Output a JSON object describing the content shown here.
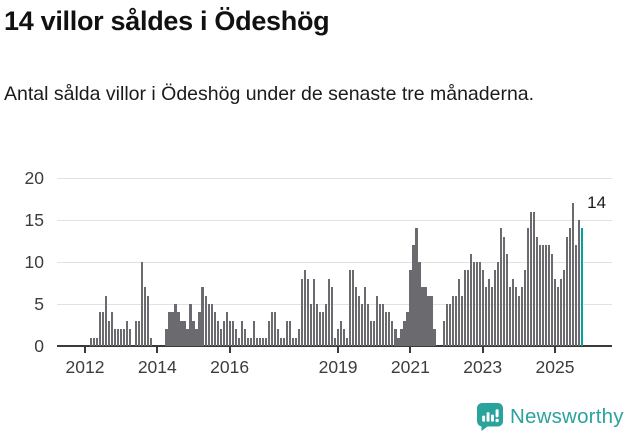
{
  "header": {
    "title": "14 villor såldes i Ödeshög",
    "subtitle": "Antal sålda villor i Ödeshög under de senaste tre månaderna."
  },
  "chart_data": {
    "type": "bar",
    "title": "14 villor såldes i Ödeshög",
    "xlabel": "",
    "ylabel": "",
    "frequency": "monthly",
    "x_start": "2012-01",
    "values": [
      0,
      0,
      1,
      1,
      1,
      4,
      4,
      6,
      3,
      4,
      2,
      2,
      2,
      2,
      3,
      2,
      0,
      3,
      3,
      10,
      7,
      6,
      1,
      0,
      0,
      0,
      0,
      2,
      4,
      4,
      5,
      4,
      3,
      3,
      2,
      5,
      3,
      2,
      4,
      7,
      6,
      5,
      5,
      4,
      3,
      2,
      3,
      4,
      3,
      3,
      2,
      1,
      3,
      2,
      1,
      1,
      3,
      1,
      1,
      1,
      1,
      3,
      4,
      4,
      2,
      1,
      1,
      3,
      3,
      1,
      1,
      2,
      8,
      9,
      8,
      5,
      8,
      5,
      4,
      4,
      5,
      8,
      7,
      1,
      2,
      3,
      2,
      1,
      9,
      9,
      7,
      6,
      5,
      7,
      5,
      3,
      3,
      6,
      5,
      5,
      4,
      4,
      3,
      2,
      1,
      2,
      3,
      4,
      9,
      12,
      14,
      10,
      7,
      7,
      6,
      6,
      2,
      0,
      0,
      3,
      5,
      5,
      6,
      6,
      8,
      6,
      9,
      9,
      11,
      10,
      10,
      10,
      9,
      7,
      8,
      7,
      9,
      10,
      14,
      13,
      11,
      7,
      8,
      7,
      6,
      7,
      9,
      14,
      16,
      16,
      13,
      12,
      12,
      12,
      12,
      11,
      8,
      7,
      8,
      9,
      13,
      14,
      17,
      12,
      15,
      14
    ],
    "highlight_last": true,
    "annotation": "14",
    "y_ticks": [
      0,
      5,
      10,
      15,
      20
    ],
    "ylim": [
      0,
      20
    ],
    "x_ticks": [
      {
        "label": "2012",
        "month_index": 0
      },
      {
        "label": "2014",
        "month_index": 24
      },
      {
        "label": "2016",
        "month_index": 48
      },
      {
        "label": "2019",
        "month_index": 84
      },
      {
        "label": "2021",
        "month_index": 108
      },
      {
        "label": "2023",
        "month_index": 132
      },
      {
        "label": "2025",
        "month_index": 156
      }
    ],
    "grid": true,
    "legend": "none"
  },
  "colors": {
    "bar": "#6b6b6f",
    "highlight": "#00a3a4",
    "grid": "#e2e2e2",
    "axis": "#3a3a3a",
    "accent": "#2ba39d"
  },
  "footer": {
    "brand": "Newsworthy"
  }
}
